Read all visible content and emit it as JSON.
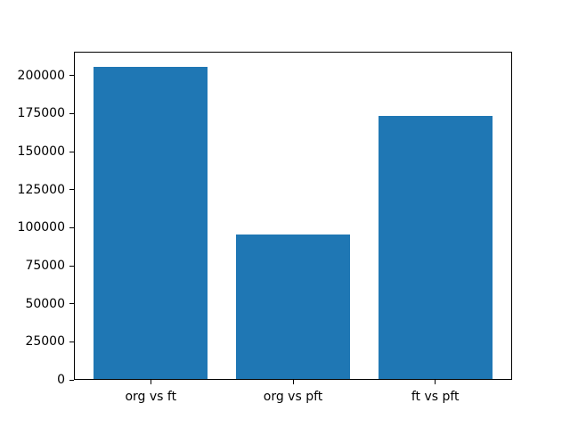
{
  "chart_data": {
    "type": "bar",
    "categories": [
      "org vs ft",
      "org vs pft",
      "ft vs pft"
    ],
    "values": [
      205400,
      95500,
      173500
    ],
    "title": "",
    "xlabel": "",
    "ylabel": "",
    "yticks": [
      0,
      25000,
      50000,
      75000,
      100000,
      125000,
      150000,
      175000,
      200000
    ],
    "ytick_labels": [
      "0",
      "25000",
      "50000",
      "75000",
      "100000",
      "125000",
      "150000",
      "175000",
      "200000"
    ],
    "ylim": [
      0,
      215600
    ],
    "xlim": [
      -0.54,
      2.54
    ],
    "bar_width": 0.8,
    "bar_color": "#1f77b4",
    "spine_color": "#000000",
    "text_color": "#000000",
    "background_color": "#ffffff",
    "grid": false,
    "legend": null
  }
}
